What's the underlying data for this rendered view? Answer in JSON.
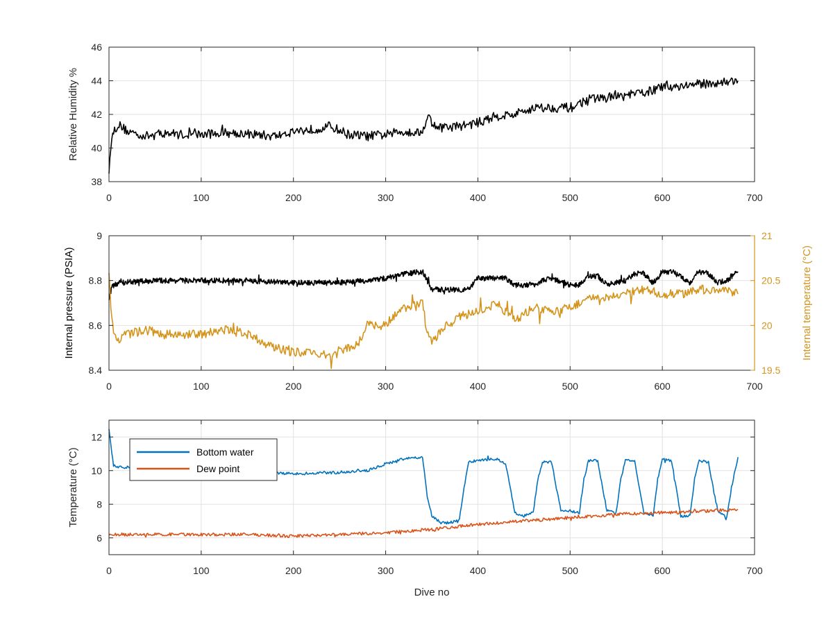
{
  "chart_data": [
    {
      "type": "line",
      "ylabel": "Relative Humidity %",
      "xlabel": "",
      "xlim": [
        0,
        700
      ],
      "ylim": [
        38,
        46
      ],
      "xticks": [
        "0",
        "100",
        "200",
        "300",
        "400",
        "500",
        "600",
        "700"
      ],
      "yticks": [
        "38",
        "40",
        "42",
        "44",
        "46"
      ],
      "grid": true,
      "series": [
        {
          "color": "#000000",
          "x": [
            0,
            2,
            5,
            10,
            20,
            40,
            60,
            80,
            100,
            120,
            140,
            160,
            180,
            200,
            220,
            240,
            260,
            280,
            300,
            320,
            340,
            345,
            350,
            360,
            380,
            400,
            420,
            440,
            460,
            480,
            500,
            520,
            540,
            560,
            580,
            600,
            620,
            640,
            660,
            682
          ],
          "y": [
            38.7,
            40.2,
            41.0,
            41.4,
            41.0,
            40.7,
            40.9,
            40.8,
            40.8,
            40.9,
            40.9,
            40.8,
            40.7,
            41.0,
            41.1,
            41.3,
            40.8,
            40.7,
            40.8,
            41.0,
            40.9,
            42.0,
            41.5,
            41.2,
            41.3,
            41.5,
            41.9,
            42.0,
            42.4,
            42.4,
            42.4,
            42.9,
            43.0,
            43.1,
            43.3,
            43.6,
            43.7,
            43.8,
            43.9,
            44.0
          ]
        }
      ]
    },
    {
      "type": "line",
      "ylabel": "Internal pressure (PSIA)",
      "y2label": "Internal temperature (°C)",
      "xlabel": "",
      "xlim": [
        0,
        700
      ],
      "ylim": [
        8.4,
        9
      ],
      "y2lim": [
        19.5,
        21
      ],
      "xticks": [
        "0",
        "100",
        "200",
        "300",
        "400",
        "500",
        "600",
        "700"
      ],
      "yticks": [
        "8.4",
        "8.6",
        "8.8",
        "9"
      ],
      "y2ticks": [
        "19.5",
        "20",
        "20.5",
        "21"
      ],
      "grid": true,
      "series": [
        {
          "axis": "left",
          "color": "#000000",
          "x": [
            0,
            3,
            10,
            50,
            100,
            150,
            200,
            250,
            280,
            300,
            320,
            340,
            345,
            350,
            380,
            390,
            400,
            430,
            440,
            460,
            470,
            480,
            500,
            510,
            520,
            530,
            540,
            560,
            570,
            580,
            590,
            600,
            610,
            620,
            630,
            640,
            650,
            660,
            670,
            682
          ],
          "y": [
            8.72,
            8.77,
            8.79,
            8.8,
            8.8,
            8.8,
            8.79,
            8.79,
            8.8,
            8.81,
            8.83,
            8.84,
            8.8,
            8.76,
            8.76,
            8.76,
            8.81,
            8.81,
            8.78,
            8.78,
            8.8,
            8.81,
            8.78,
            8.78,
            8.82,
            8.82,
            8.78,
            8.8,
            8.83,
            8.83,
            8.79,
            8.84,
            8.84,
            8.82,
            8.79,
            8.84,
            8.83,
            8.79,
            8.8,
            8.84
          ]
        },
        {
          "axis": "right",
          "color": "#D4941C",
          "x": [
            0,
            2,
            5,
            10,
            20,
            40,
            60,
            80,
            100,
            120,
            140,
            160,
            180,
            200,
            220,
            240,
            260,
            270,
            280,
            300,
            320,
            340,
            345,
            350,
            360,
            380,
            400,
            420,
            440,
            460,
            480,
            500,
            520,
            540,
            560,
            580,
            600,
            620,
            640,
            660,
            682
          ],
          "y": [
            20.6,
            20.2,
            19.9,
            19.85,
            19.9,
            19.95,
            19.9,
            19.9,
            19.9,
            19.95,
            19.95,
            19.85,
            19.75,
            19.7,
            19.7,
            19.65,
            19.75,
            19.8,
            20.0,
            20.0,
            20.2,
            20.25,
            19.9,
            19.8,
            19.95,
            20.1,
            20.15,
            20.25,
            20.05,
            20.2,
            20.15,
            20.2,
            20.3,
            20.3,
            20.35,
            20.4,
            20.35,
            20.35,
            20.4,
            20.4,
            20.35
          ]
        }
      ]
    },
    {
      "type": "line",
      "ylabel": "Temperature (°C)",
      "xlabel": "Dive no",
      "xlim": [
        0,
        700
      ],
      "ylim": [
        5,
        13
      ],
      "xticks": [
        "0",
        "100",
        "200",
        "300",
        "400",
        "500",
        "600",
        "700"
      ],
      "yticks": [
        "6",
        "8",
        "10",
        "12"
      ],
      "grid": true,
      "legend": "top-left",
      "series": [
        {
          "name": "Bottom water",
          "color": "#0072BD",
          "x": [
            0,
            2,
            5,
            10,
            50,
            100,
            150,
            200,
            250,
            280,
            300,
            320,
            340,
            345,
            350,
            360,
            370,
            380,
            385,
            390,
            400,
            420,
            430,
            435,
            440,
            450,
            460,
            465,
            470,
            480,
            485,
            490,
            500,
            510,
            515,
            520,
            530,
            535,
            540,
            550,
            555,
            560,
            570,
            575,
            580,
            590,
            595,
            600,
            610,
            615,
            620,
            630,
            635,
            640,
            650,
            655,
            660,
            670,
            675,
            682
          ],
          "y": [
            12.4,
            11.5,
            10.3,
            10.2,
            10.2,
            10.1,
            10.0,
            9.8,
            9.9,
            10.0,
            10.4,
            10.7,
            10.8,
            8.5,
            7.3,
            6.9,
            6.9,
            7.1,
            9.0,
            10.5,
            10.6,
            10.7,
            10.4,
            9.0,
            7.5,
            7.3,
            7.5,
            9.5,
            10.5,
            10.5,
            9.0,
            7.6,
            7.6,
            7.5,
            9.5,
            10.6,
            10.6,
            9.0,
            7.6,
            7.5,
            9.5,
            10.6,
            10.6,
            9.0,
            7.5,
            7.3,
            9.5,
            10.7,
            10.6,
            9.0,
            7.3,
            7.3,
            9.5,
            10.6,
            10.5,
            9.0,
            7.6,
            7.2,
            9.0,
            10.8
          ]
        },
        {
          "name": "Dew point",
          "color": "#D95319",
          "x": [
            0,
            50,
            100,
            150,
            200,
            250,
            300,
            350,
            400,
            450,
            500,
            550,
            600,
            650,
            682
          ],
          "y": [
            6.2,
            6.2,
            6.2,
            6.2,
            6.1,
            6.2,
            6.3,
            6.5,
            6.8,
            7.0,
            7.2,
            7.4,
            7.5,
            7.6,
            7.7
          ]
        }
      ]
    }
  ]
}
